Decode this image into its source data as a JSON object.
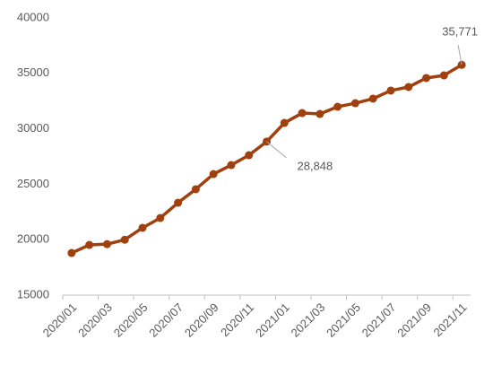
{
  "chart_data": {
    "type": "line",
    "categories": [
      "2020/01",
      null,
      "2020/03",
      null,
      "2020/05",
      null,
      "2020/07",
      null,
      "2020/09",
      null,
      "2020/11",
      null,
      "2021/01",
      null,
      "2021/03",
      null,
      "2021/05",
      null,
      "2021/07",
      null,
      "2021/09",
      null,
      "2021/11"
    ],
    "series": [
      {
        "color": "#a0400f",
        "values": [
          18800,
          19530,
          19600,
          20000,
          21070,
          21960,
          23330,
          24550,
          25920,
          26730,
          27620,
          28848,
          30530,
          31420,
          31340,
          31990,
          32310,
          32720,
          33450,
          33770,
          34580,
          34820,
          35771
        ],
        "value_labels": [
          null,
          null,
          null,
          null,
          null,
          null,
          null,
          null,
          null,
          null,
          null,
          "28,848",
          null,
          null,
          null,
          null,
          null,
          null,
          null,
          null,
          null,
          null,
          "35,771"
        ]
      }
    ],
    "ylim": [
      15000,
      40000
    ],
    "yticks": [
      15000,
      20000,
      25000,
      30000,
      35000,
      40000
    ],
    "grid": false
  }
}
